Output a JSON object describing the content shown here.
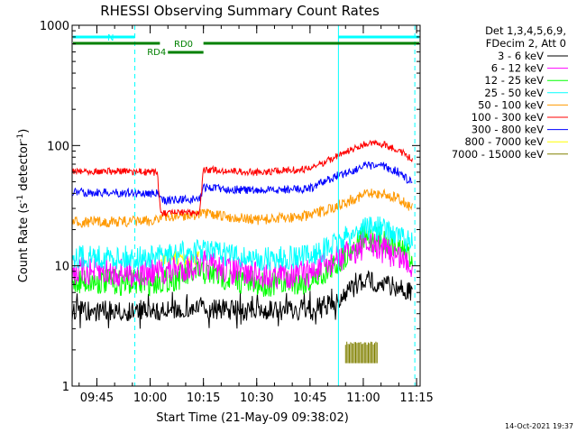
{
  "chart_data": {
    "type": "line",
    "title": "RHESSI Observing Summary Count Rates",
    "ylabel_main": "Count Rate (s",
    "ylabel_sup1": "-1",
    "ylabel_mid": " detector",
    "ylabel_sup2": "-1",
    "ylabel_end": ")",
    "xlabel": "Start Time (21-May-09 09:38:02)",
    "timestamp": "14-Oct-2021 19:37",
    "y_scale": "log",
    "ylim": [
      1,
      1000
    ],
    "xlim": [
      "09:38:02",
      "11:16:00"
    ],
    "y_ticks": [
      {
        "value": 1,
        "label": "1"
      },
      {
        "value": 10,
        "label": "10"
      },
      {
        "value": 100,
        "label": "100"
      },
      {
        "value": 1000,
        "label": "1000"
      }
    ],
    "x_ticks": [
      {
        "value": "09:45",
        "label": "09:45"
      },
      {
        "value": "10:00",
        "label": "10:00"
      },
      {
        "value": "10:15",
        "label": "10:15"
      },
      {
        "value": "10:30",
        "label": "10:30"
      },
      {
        "value": "10:45",
        "label": "10:45"
      },
      {
        "value": "11:00",
        "label": "11:00"
      },
      {
        "value": "11:15",
        "label": "11:15"
      }
    ],
    "legend": {
      "placement": "right",
      "header": [
        "Det 1,3,4,5,6,9,",
        "FDecim 2, Att 0"
      ]
    },
    "series": [
      {
        "name": "3 - 6 keV",
        "color": "#000000",
        "points": [
          [
            "09:38",
            4.2
          ],
          [
            "10:00",
            4.2
          ],
          [
            "10:15",
            4.4
          ],
          [
            "10:30",
            4.2
          ],
          [
            "10:45",
            4.3
          ],
          [
            "10:52",
            5.0
          ],
          [
            "11:00",
            7.5
          ],
          [
            "11:05",
            7.3
          ],
          [
            "11:10",
            6.6
          ],
          [
            "11:14",
            5.8
          ]
        ]
      },
      {
        "name": "6 - 12 keV",
        "color": "#ff00ff",
        "points": [
          [
            "09:38",
            9.0
          ],
          [
            "10:00",
            8.6
          ],
          [
            "10:15",
            10.2
          ],
          [
            "10:30",
            8.3
          ],
          [
            "10:45",
            8.6
          ],
          [
            "10:52",
            11.0
          ],
          [
            "11:00",
            14.8
          ],
          [
            "11:05",
            14.0
          ],
          [
            "11:10",
            12.0
          ],
          [
            "11:14",
            10.0
          ]
        ]
      },
      {
        "name": "12 - 25 keV",
        "color": "#00ff00",
        "points": [
          [
            "09:38",
            7.5
          ],
          [
            "10:00",
            7.2
          ],
          [
            "10:15",
            8.8
          ],
          [
            "10:30",
            7.0
          ],
          [
            "10:45",
            7.4
          ],
          [
            "10:52",
            10.0
          ],
          [
            "11:00",
            17.0
          ],
          [
            "11:05",
            16.5
          ],
          [
            "11:10",
            14.0
          ],
          [
            "11:14",
            11.5
          ]
        ]
      },
      {
        "name": "25 - 50 keV",
        "color": "#00ffff",
        "points": [
          [
            "09:38",
            12.0
          ],
          [
            "10:00",
            11.6
          ],
          [
            "10:15",
            13.5
          ],
          [
            "10:30",
            11.2
          ],
          [
            "10:45",
            12.0
          ],
          [
            "10:52",
            15.0
          ],
          [
            "11:00",
            21.0
          ],
          [
            "11:05",
            20.5
          ],
          [
            "11:10",
            18.0
          ],
          [
            "11:14",
            15.0
          ]
        ]
      },
      {
        "name": "50 - 100 keV",
        "color": "#ff9900",
        "points": [
          [
            "09:38",
            23.0
          ],
          [
            "10:00",
            23.5
          ],
          [
            "10:02",
            25.0
          ],
          [
            "10:15",
            27.0
          ],
          [
            "10:30",
            24.0
          ],
          [
            "10:45",
            26.0
          ],
          [
            "10:52",
            31.0
          ],
          [
            "11:00",
            39.0
          ],
          [
            "11:05",
            40.0
          ],
          [
            "11:10",
            36.0
          ],
          [
            "11:14",
            30.0
          ]
        ]
      },
      {
        "name": "100 - 300 keV",
        "color": "#ff0000",
        "points": [
          [
            "09:38",
            62.0
          ],
          [
            "10:02",
            60.0
          ],
          [
            "10:03",
            27.0
          ],
          [
            "10:14",
            28.0
          ],
          [
            "10:15",
            63.0
          ],
          [
            "10:30",
            60.0
          ],
          [
            "10:45",
            64.0
          ],
          [
            "10:52",
            80.0
          ],
          [
            "11:00",
            102.0
          ],
          [
            "11:05",
            104.0
          ],
          [
            "11:10",
            92.0
          ],
          [
            "11:14",
            75.0
          ]
        ]
      },
      {
        "name": "300 - 800 keV",
        "color": "#0000ff",
        "points": [
          [
            "09:38",
            41.0
          ],
          [
            "10:02",
            40.0
          ],
          [
            "10:03",
            35.0
          ],
          [
            "10:14",
            36.0
          ],
          [
            "10:15",
            45.0
          ],
          [
            "10:30",
            42.0
          ],
          [
            "10:45",
            44.0
          ],
          [
            "10:52",
            55.0
          ],
          [
            "11:00",
            67.0
          ],
          [
            "11:05",
            68.0
          ],
          [
            "11:10",
            60.0
          ],
          [
            "11:14",
            48.0
          ]
        ]
      },
      {
        "name": "800 - 7000 keV",
        "color": "#ffff00",
        "points": [
          [
            "10:03",
            11.5
          ],
          [
            "10:14",
            11.5
          ]
        ]
      },
      {
        "name": "7000 - 15000 keV",
        "color": "#808000",
        "points": [
          [
            "10:55",
            2.2
          ],
          [
            "11:04",
            2.2
          ]
        ]
      }
    ],
    "annotations": [
      {
        "label": "N",
        "color": "#00ffff"
      },
      {
        "label": "RD0",
        "color": "#008000"
      },
      {
        "label": "RD4",
        "color": "#008000"
      }
    ]
  }
}
